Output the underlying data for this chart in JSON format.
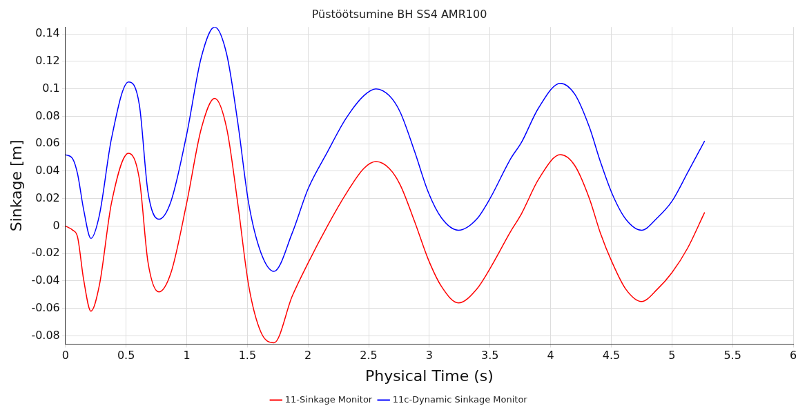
{
  "chart_data": {
    "type": "line",
    "title": "Püstöötsumine BH SS4 AMR100",
    "xlabel": "Physical Time (s)",
    "ylabel": "Sinkage [m]",
    "x": [
      0,
      0.06,
      0.1,
      0.15,
      0.21,
      0.28,
      0.38,
      0.52,
      0.61,
      0.68,
      0.77,
      0.87,
      1.0,
      1.12,
      1.23,
      1.33,
      1.42,
      1.51,
      1.61,
      1.72,
      1.87,
      2.0,
      2.16,
      2.31,
      2.46,
      2.56,
      2.67,
      2.76,
      2.88,
      2.99,
      3.1,
      3.24,
      3.39,
      3.5,
      3.67,
      3.76,
      3.9,
      4.08,
      4.2,
      4.32,
      4.41,
      4.51,
      4.62,
      4.75,
      4.88,
      5.0,
      5.13,
      5.27
    ],
    "series": [
      {
        "name": "11-Sinkage Monitor",
        "color": "#ff0000",
        "values": [
          0,
          -0.003,
          -0.008,
          -0.039,
          -0.062,
          -0.043,
          0.017,
          0.053,
          0.034,
          -0.026,
          -0.048,
          -0.034,
          0.017,
          0.071,
          0.093,
          0.071,
          0.017,
          -0.043,
          -0.077,
          -0.085,
          -0.051,
          -0.027,
          0.0,
          0.023,
          0.042,
          0.047,
          0.042,
          0.03,
          0.003,
          -0.024,
          -0.044,
          -0.056,
          -0.046,
          -0.031,
          -0.004,
          0.009,
          0.034,
          0.052,
          0.044,
          0.02,
          -0.005,
          -0.027,
          -0.046,
          -0.055,
          -0.046,
          -0.034,
          -0.016,
          0.01
        ]
      },
      {
        "name": "11c-Dynamic Sinkage Monitor",
        "color": "#0000ff",
        "values": [
          0.052,
          0.049,
          0.038,
          0.012,
          -0.009,
          0.008,
          0.064,
          0.105,
          0.088,
          0.025,
          0.005,
          0.018,
          0.067,
          0.123,
          0.145,
          0.125,
          0.076,
          0.017,
          -0.019,
          -0.033,
          -0.005,
          0.027,
          0.054,
          0.078,
          0.095,
          0.1,
          0.095,
          0.083,
          0.054,
          0.025,
          0.006,
          -0.003,
          0.005,
          0.02,
          0.049,
          0.061,
          0.086,
          0.104,
          0.096,
          0.072,
          0.047,
          0.023,
          0.005,
          -0.003,
          0.006,
          0.018,
          0.039,
          0.062
        ]
      }
    ],
    "xlim": [
      0,
      6
    ],
    "xticks": [
      0,
      0.5,
      1,
      1.5,
      2,
      2.5,
      3,
      3.5,
      4,
      4.5,
      5,
      5.5,
      6
    ],
    "ylim": [
      -0.086,
      0.145
    ],
    "yticks": [
      -0.08,
      -0.06,
      -0.04,
      -0.02,
      0,
      0.02,
      0.04,
      0.06,
      0.08,
      0.1,
      0.12,
      0.14
    ],
    "grid": true,
    "legend": "bottom",
    "marker": "none",
    "line_style": "solid"
  }
}
